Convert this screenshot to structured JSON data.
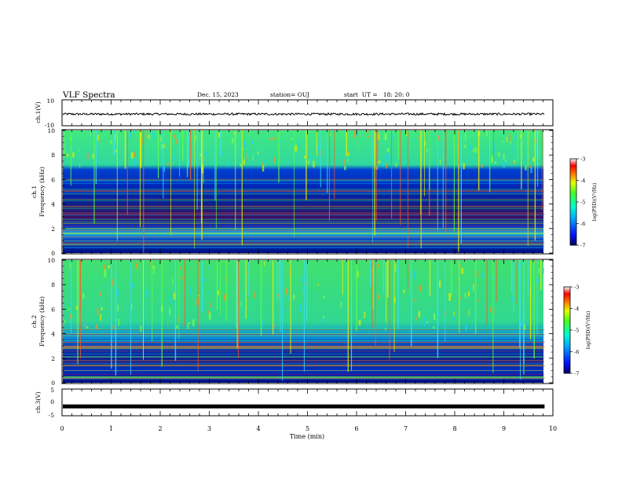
{
  "header": {
    "title": "VLF Spectra",
    "date": "Dec. 15, 2023",
    "station": "station= OUJ",
    "start_ut": "start  UT =   18: 20: 0"
  },
  "chart_data": [
    {
      "type": "line",
      "panel": "ch1-waveform",
      "ylabel": "ch.1(V)",
      "ylim": [
        -10,
        10
      ],
      "yticks": [
        "10",
        "-10"
      ],
      "xlim": [
        0,
        10
      ],
      "trace_level": -1
    },
    {
      "type": "heatmap",
      "panel": "ch1-spectrogram",
      "ylabel_line1": "ch.1",
      "ylabel_line2": "Frequency (kHz)",
      "ylim": [
        0,
        10
      ],
      "yticks": [
        "0",
        "2",
        "4",
        "6",
        "8",
        "10"
      ],
      "xlim": [
        0,
        9.83
      ],
      "colorbar": {
        "label": "log(PSD)(V²/Hz)",
        "range": [
          -7,
          -3
        ],
        "ticks": [
          "-3",
          "-4",
          "-5",
          "-6",
          "-7"
        ]
      }
    },
    {
      "type": "heatmap",
      "panel": "ch2-spectrogram",
      "ylabel_line1": "ch.2",
      "ylabel_line2": "Frequency (kHz)",
      "ylim": [
        0,
        10
      ],
      "yticks": [
        "0",
        "2",
        "4",
        "6",
        "8",
        "10"
      ],
      "xlim": [
        0,
        9.83
      ],
      "colorbar": {
        "label": "log(PSD)(V²/Hz)",
        "range": [
          -7,
          -3
        ],
        "ticks": [
          "-3",
          "-4",
          "-5",
          "-6",
          "-7"
        ]
      }
    },
    {
      "type": "line",
      "panel": "ch3-waveform",
      "ylabel": "ch.3(V)",
      "ylim": [
        -5,
        5
      ],
      "yticks": [
        "5",
        "0",
        "-5"
      ],
      "xlim": [
        0,
        10
      ],
      "trace_level": -1.5
    }
  ],
  "xaxis": {
    "label": "Time (min)",
    "ticks": [
      "0",
      "1",
      "2",
      "3",
      "4",
      "5",
      "6",
      "7",
      "8",
      "9",
      "10"
    ]
  },
  "colors": {
    "spectrogram_background_low": "#001080",
    "spectrogram_background_high": "#30e070",
    "trace": "#000000"
  }
}
